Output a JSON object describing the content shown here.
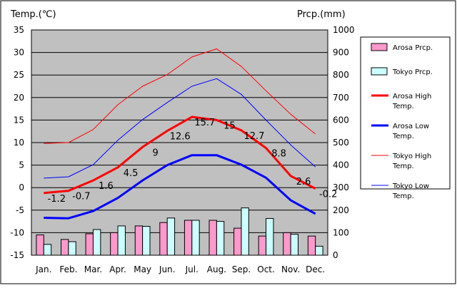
{
  "chart_data": {
    "type": "bar+line",
    "left_axis_title": "Temp.(℃)",
    "right_axis_title": "Prcp.(mm)",
    "months": [
      "Jan.",
      "Feb.",
      "Mar.",
      "Apr.",
      "May",
      "Jun.",
      "Jul.",
      "Aug.",
      "Sep.",
      "Oct.",
      "Nov.",
      "Dec."
    ],
    "temp_axis": {
      "min": -15,
      "max": 35,
      "step": 5
    },
    "prcp_axis": {
      "min": 0,
      "max": 1000,
      "step": 100
    },
    "temp_ticks": [
      "35",
      "30",
      "25",
      "20",
      "15",
      "10",
      "5",
      "0",
      "-5",
      "-10",
      "-15"
    ],
    "prcp_ticks": [
      "1000",
      "900",
      "800",
      "700",
      "600",
      "500",
      "400",
      "300",
      "200",
      "100",
      "0"
    ],
    "bar_series": [
      {
        "name": "Arosa Prcp.",
        "legend": "Arosa Prcp.",
        "color": "#ff99cc",
        "values": [
          90,
          70,
          95,
          100,
          130,
          145,
          155,
          155,
          120,
          85,
          100,
          85
        ]
      },
      {
        "name": "Tokyo Prcp.",
        "legend": "Tokyo Prcp.",
        "color": "#ccffff",
        "values": [
          48,
          60,
          114,
          130,
          128,
          165,
          155,
          150,
          210,
          163,
          93,
          40
        ]
      }
    ],
    "line_series": [
      {
        "name": "Arosa High Temp.",
        "legend_lines": [
          "Arosa High",
          "Temp."
        ],
        "color": "#ff0000",
        "width": 3,
        "values": [
          -1.2,
          -0.7,
          1.6,
          4.5,
          9,
          12.6,
          15.7,
          15,
          12.7,
          8.8,
          2.6,
          -0.2
        ],
        "labels": [
          "-1.2",
          "-0.7",
          "1.6",
          "4.5",
          "9",
          "12.6",
          "15.7",
          "15",
          "12.7",
          "8.8",
          "2.6",
          "-0.2"
        ]
      },
      {
        "name": "Arosa Low Temp.",
        "legend_lines": [
          "Arosa Low",
          "Temp."
        ],
        "color": "#0000ff",
        "width": 3,
        "values": [
          -6.7,
          -6.8,
          -5.2,
          -2.3,
          1.6,
          5,
          7.2,
          7.2,
          5.1,
          2.2,
          -2.8,
          -5.8
        ]
      },
      {
        "name": "Tokyo High Temp.",
        "legend_lines": [
          "Tokyo High",
          "Temp."
        ],
        "color": "#ff0000",
        "width": 1,
        "values": [
          9.8,
          10,
          12.9,
          18.4,
          22.5,
          25.1,
          29,
          30.8,
          26.9,
          21.5,
          16.3,
          11.9
        ]
      },
      {
        "name": "Tokyo Low Temp.",
        "legend_lines": [
          "Tokyo Low",
          "Temp."
        ],
        "color": "#0000ff",
        "width": 1,
        "values": [
          2.1,
          2.4,
          5.1,
          10.5,
          15.1,
          18.9,
          22.5,
          24.2,
          20.7,
          15,
          9.5,
          4.6
        ]
      }
    ]
  }
}
